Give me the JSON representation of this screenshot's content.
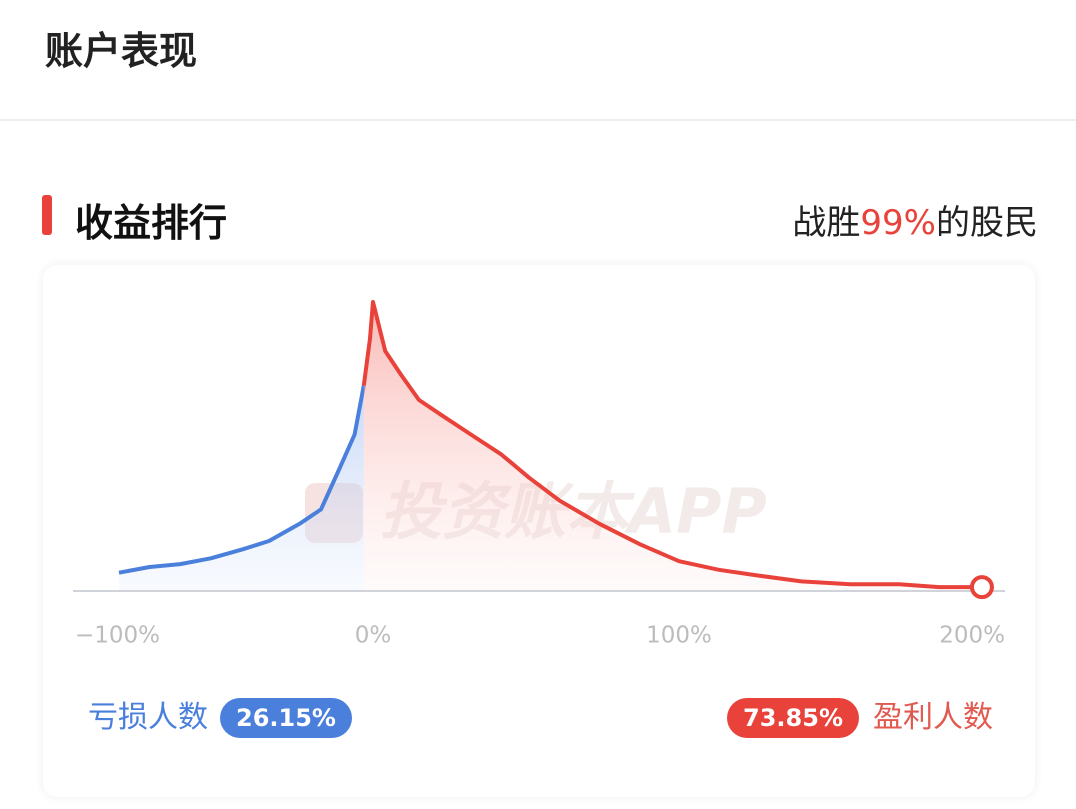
{
  "header": {
    "title": "账户表现"
  },
  "section": {
    "title": "收益排行",
    "rank_prefix": "战胜",
    "rank_value": "99%",
    "rank_suffix": "的股民"
  },
  "watermark": "投资账本APP",
  "chart_data": {
    "type": "area",
    "xlim": [
      -100,
      200
    ],
    "ylim": [
      0,
      100
    ],
    "xticks": [
      {
        "value": -100,
        "label": "−100%"
      },
      {
        "value": 0,
        "label": "0%"
      },
      {
        "value": 100,
        "label": "100%"
      },
      {
        "value": 200,
        "label": "200%"
      }
    ],
    "series": [
      {
        "name": "亏损人数",
        "share": "26.15%",
        "color": "#4a7fdc",
        "x": [
          -83,
          -73,
          -63,
          -53,
          -43,
          -34,
          -24,
          -17,
          -11,
          -6,
          -3
        ],
        "values": [
          6,
          8,
          9,
          11,
          14,
          17,
          23,
          28,
          42,
          54,
          71
        ]
      },
      {
        "name": "盈利人数",
        "share": "73.85%",
        "color": "#e8423a",
        "x": [
          -3,
          -1,
          0,
          4,
          9,
          15,
          22,
          32,
          42,
          51,
          61,
          74,
          87,
          100,
          113,
          126,
          140,
          156,
          172,
          185,
          199
        ],
        "values": [
          71,
          87,
          100,
          83,
          75,
          66,
          61,
          54,
          47,
          39,
          31,
          23,
          16,
          10,
          7,
          5,
          3,
          2,
          2,
          1,
          1
        ]
      }
    ]
  }
}
